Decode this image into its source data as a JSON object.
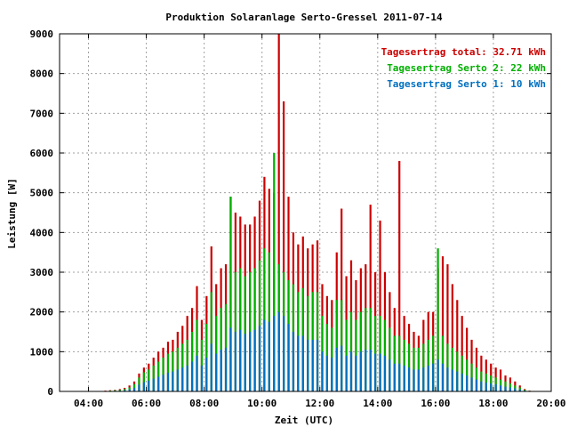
{
  "chart_data": {
    "type": "bar",
    "title": "Produktion Solaranlage Serto-Gressel 2011-07-14",
    "xlabel": "Zeit (UTC)",
    "ylabel": "Leistung [W]",
    "x_ticks": [
      "04:00",
      "06:00",
      "08:00",
      "10:00",
      "12:00",
      "14:00",
      "16:00",
      "18:00",
      "20:00"
    ],
    "y_ticks": [
      "0",
      "1000",
      "2000",
      "3000",
      "4000",
      "5000",
      "6000",
      "7000",
      "8000",
      "9000"
    ],
    "xlim": [
      "03:00",
      "20:00"
    ],
    "ylim": [
      0,
      9000
    ],
    "grid": true,
    "legend_position": "top-right",
    "colors": {
      "total": "#cc0000",
      "serto2": "#00b000",
      "serto1": "#0070c0"
    },
    "legend": [
      {
        "key": "total",
        "label": "Tagesertrag total: 32.71 kWh"
      },
      {
        "key": "serto2",
        "label": "Tagesertrag Serto 2: 22 kWh"
      },
      {
        "key": "serto1",
        "label": "Tagesertrag Serto 1: 10 kWh"
      }
    ],
    "x": [
      "04:25",
      "04:35",
      "04:45",
      "04:55",
      "05:05",
      "05:15",
      "05:25",
      "05:35",
      "05:45",
      "05:55",
      "06:05",
      "06:15",
      "06:25",
      "06:35",
      "06:45",
      "06:55",
      "07:05",
      "07:15",
      "07:25",
      "07:35",
      "07:45",
      "07:55",
      "08:05",
      "08:15",
      "08:25",
      "08:35",
      "08:45",
      "08:55",
      "09:05",
      "09:15",
      "09:25",
      "09:35",
      "09:45",
      "09:55",
      "10:05",
      "10:15",
      "10:25",
      "10:35",
      "10:45",
      "10:55",
      "11:05",
      "11:15",
      "11:25",
      "11:35",
      "11:45",
      "11:55",
      "12:05",
      "12:15",
      "12:25",
      "12:35",
      "12:45",
      "12:55",
      "13:05",
      "13:15",
      "13:25",
      "13:35",
      "13:45",
      "13:55",
      "14:05",
      "14:15",
      "14:25",
      "14:35",
      "14:45",
      "14:55",
      "15:05",
      "15:15",
      "15:25",
      "15:35",
      "15:45",
      "15:55",
      "16:05",
      "16:15",
      "16:25",
      "16:35",
      "16:45",
      "16:55",
      "17:05",
      "17:15",
      "17:25",
      "17:35",
      "17:45",
      "17:55",
      "18:05",
      "18:15",
      "18:25",
      "18:35",
      "18:45",
      "18:55",
      "19:05",
      "19:15"
    ],
    "series": [
      {
        "key": "total",
        "name": "Tagesertrag total",
        "values": [
          10,
          20,
          30,
          40,
          60,
          90,
          150,
          250,
          450,
          600,
          700,
          850,
          1000,
          1100,
          1250,
          1300,
          1500,
          1650,
          1900,
          2100,
          2650,
          1800,
          2400,
          3650,
          2700,
          3100,
          3200,
          4900,
          4500,
          4400,
          4200,
          4200,
          4400,
          4800,
          5400,
          5100,
          5000,
          9000,
          7300,
          4900,
          4000,
          3700,
          3900,
          3600,
          3700,
          3800,
          2700,
          2400,
          2300,
          3500,
          4600,
          2900,
          3300,
          2800,
          3100,
          3200,
          4700,
          3000,
          4300,
          3000,
          2500,
          2100,
          5800,
          1900,
          1700,
          1500,
          1400,
          1800,
          2000,
          2000,
          3100,
          3400,
          3200,
          2700,
          2300,
          1900,
          1600,
          1300,
          1100,
          900,
          800,
          700,
          600,
          550,
          400,
          350,
          250,
          150,
          60,
          20
        ]
      },
      {
        "key": "serto2",
        "name": "Tagesertrag Serto 2",
        "values": [
          5,
          10,
          20,
          30,
          40,
          60,
          100,
          180,
          350,
          480,
          550,
          650,
          750,
          850,
          950,
          1000,
          1100,
          1200,
          1300,
          1500,
          1800,
          1300,
          1700,
          2500,
          1900,
          2100,
          2200,
          4900,
          3000,
          3100,
          2900,
          3000,
          3100,
          3300,
          3600,
          3500,
          6000,
          3200,
          3000,
          2800,
          2700,
          2500,
          2600,
          2400,
          2500,
          2500,
          1900,
          1700,
          1600,
          2300,
          2300,
          1800,
          2000,
          1800,
          2000,
          2100,
          2100,
          1900,
          1900,
          1800,
          1600,
          1400,
          1400,
          1300,
          1200,
          1100,
          1100,
          1200,
          1300,
          1400,
          3600,
          1400,
          1200,
          1100,
          1000,
          900,
          800,
          700,
          600,
          500,
          450,
          400,
          350,
          300,
          250,
          200,
          150,
          100,
          40,
          15
        ]
      },
      {
        "key": "serto1",
        "name": "Tagesertrag Serto 1",
        "values": [
          3,
          5,
          10,
          15,
          20,
          30,
          50,
          90,
          170,
          230,
          270,
          320,
          370,
          420,
          470,
          500,
          550,
          600,
          650,
          750,
          900,
          650,
          850,
          1200,
          950,
          1050,
          1100,
          1600,
          1500,
          1550,
          1450,
          1500,
          1550,
          1650,
          1800,
          1750,
          1900,
          2000,
          1900,
          1700,
          1500,
          1400,
          1400,
          1300,
          1300,
          1300,
          1000,
          900,
          850,
          1100,
          1150,
          900,
          1000,
          900,
          1000,
          1050,
          1050,
          950,
          950,
          900,
          800,
          700,
          700,
          650,
          600,
          550,
          550,
          600,
          650,
          700,
          800,
          700,
          600,
          550,
          500,
          450,
          400,
          350,
          300,
          250,
          220,
          200,
          180,
          150,
          120,
          100,
          80,
          50,
          20,
          8
        ]
      }
    ]
  }
}
